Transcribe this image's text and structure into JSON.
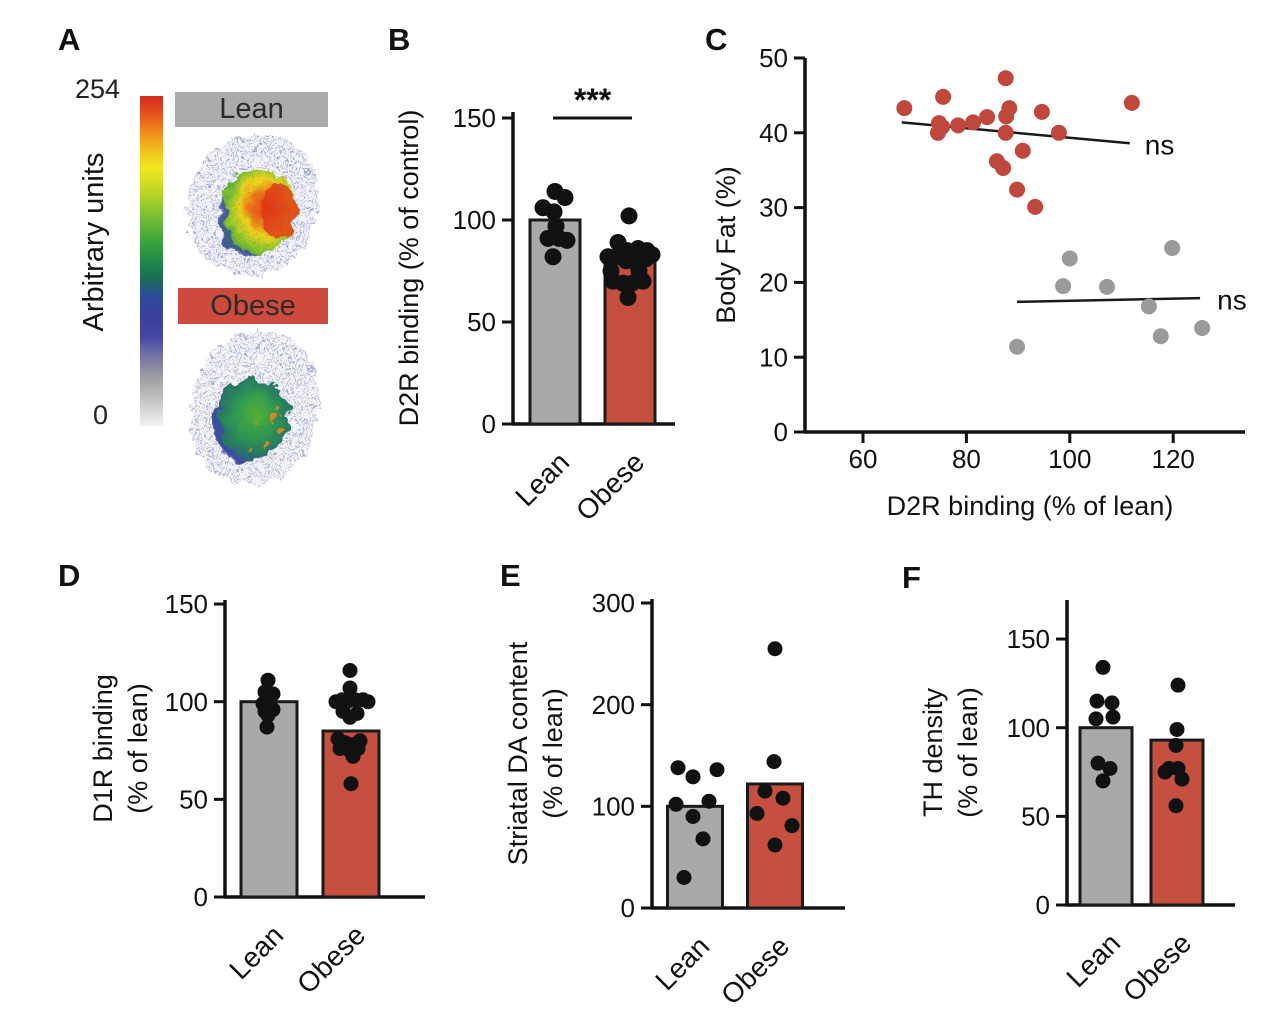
{
  "figure_labels": {
    "A": "A",
    "B": "B",
    "C": "C",
    "D": "D",
    "E": "E",
    "F": "F"
  },
  "panel_a": {
    "value_top": "254",
    "value_bottom": "0",
    "scale_label": "Arbitrary units",
    "images": [
      {
        "label": "Lean",
        "header_color": "#ABABAB"
      },
      {
        "label": "Obese",
        "header_color": "#CE4A3C"
      }
    ]
  },
  "colors": {
    "lean_bar": "#A9A9A9",
    "obese_bar": "#C5503F",
    "bar_border": "#1a1a1a",
    "dot": "#111111",
    "scatter_obese": "#C0473C",
    "scatter_lean": "#9A9A9A",
    "axis": "#111111"
  },
  "chart_data": [
    {
      "panel": "B",
      "type": "bar",
      "ylabel_lines": [
        "D2R binding (% of control)"
      ],
      "categories": [
        "Lean",
        "Obese"
      ],
      "bar_values": [
        100,
        80
      ],
      "yticks": [
        0,
        50,
        100,
        150
      ],
      "ylim": [
        0,
        153
      ],
      "significance": "***",
      "points": [
        [
          [
            0,
            114
          ],
          [
            10,
            111
          ],
          [
            -12,
            106
          ],
          [
            -1,
            104
          ],
          [
            1,
            97
          ],
          [
            -7,
            91
          ],
          [
            4,
            91
          ],
          [
            12,
            90
          ],
          [
            -2,
            82
          ]
        ],
        [
          [
            -1,
            102
          ],
          [
            -12,
            89
          ],
          [
            -3,
            85
          ],
          [
            8,
            86
          ],
          [
            17,
            85
          ],
          [
            -22,
            82
          ],
          [
            -14,
            82
          ],
          [
            -4,
            80
          ],
          [
            6,
            79
          ],
          [
            16,
            81
          ],
          [
            22,
            83
          ],
          [
            -19,
            75
          ],
          [
            9,
            75
          ],
          [
            -17,
            70
          ],
          [
            -7,
            69
          ],
          [
            2,
            69
          ],
          [
            13,
            70
          ],
          [
            -2,
            62
          ]
        ]
      ]
    },
    {
      "panel": "C",
      "type": "scatter",
      "xlabel": "D2R binding (% of lean)",
      "ylabel": "Body Fat (%)",
      "xticks": [
        60,
        80,
        100,
        120
      ],
      "yticks": [
        0,
        10,
        20,
        30,
        40,
        50
      ],
      "xlim": [
        49,
        134
      ],
      "ylim": [
        0,
        50
      ],
      "series": [
        {
          "name": "Obese",
          "color": "#C0473C",
          "points": [
            [
              68,
              43.3
            ],
            [
              75.5,
              44.8
            ],
            [
              87.6,
              47.3
            ],
            [
              74.7,
              41.3
            ],
            [
              75.3,
              40.8
            ],
            [
              74.5,
              40.0
            ],
            [
              78.4,
              41.0
            ],
            [
              81.3,
              41.4
            ],
            [
              84,
              42.1
            ],
            [
              88.3,
              43.3
            ],
            [
              87.7,
              42.2
            ],
            [
              94.6,
              42.8
            ],
            [
              87.6,
              40.0
            ],
            [
              97.9,
              40.0
            ],
            [
              90.9,
              37.6
            ],
            [
              85.9,
              36.2
            ],
            [
              87.1,
              35.3
            ],
            [
              89.8,
              32.4
            ],
            [
              93.3,
              30.1
            ],
            [
              112,
              44.0
            ]
          ],
          "trend": [
            [
              67.5,
              41.4
            ],
            [
              111.6,
              38.6
            ]
          ],
          "annotation": "ns",
          "annotation_xy": [
            114.5,
            38.4
          ]
        },
        {
          "name": "Lean",
          "color": "#9A9A9A",
          "points": [
            [
              100,
              23.2
            ],
            [
              98.7,
              19.5
            ],
            [
              107.2,
              19.4
            ],
            [
              89.8,
              11.4
            ],
            [
              115.3,
              16.8
            ],
            [
              117.6,
              12.8
            ],
            [
              119.8,
              24.6
            ],
            [
              125.6,
              13.9
            ]
          ],
          "trend": [
            [
              89.8,
              17.4
            ],
            [
              125.2,
              17.9
            ]
          ],
          "annotation": "ns",
          "annotation_xy": [
            128.5,
            17.7
          ]
        }
      ]
    },
    {
      "panel": "D",
      "type": "bar",
      "ylabel_lines": [
        "D1R binding",
        "(% of lean)"
      ],
      "categories": [
        "Lean",
        "Obese"
      ],
      "bar_values": [
        100,
        85
      ],
      "yticks": [
        0,
        50,
        100,
        150
      ],
      "ylim": [
        0,
        152
      ],
      "significance": null,
      "points": [
        [
          [
            -1,
            111
          ],
          [
            -4,
            105
          ],
          [
            4,
            104
          ],
          [
            -6,
            99
          ],
          [
            0,
            98
          ],
          [
            -4,
            95
          ],
          [
            4,
            96
          ],
          [
            -1,
            93
          ],
          [
            -2,
            87
          ]
        ],
        [
          [
            -1,
            116
          ],
          [
            -1,
            107
          ],
          [
            -15,
            100
          ],
          [
            -9,
            101
          ],
          [
            -4,
            100
          ],
          [
            4,
            101
          ],
          [
            12,
            101
          ],
          [
            17,
            100
          ],
          [
            -8,
            95
          ],
          [
            6,
            94
          ],
          [
            -1,
            92
          ],
          [
            -13,
            81
          ],
          [
            -6,
            79
          ],
          [
            2,
            78
          ],
          [
            9,
            80
          ],
          [
            -11,
            76
          ],
          [
            -1,
            75
          ],
          [
            7,
            76
          ],
          [
            2,
            72
          ],
          [
            0,
            58
          ]
        ]
      ]
    },
    {
      "panel": "E",
      "type": "bar",
      "ylabel_lines": [
        "Striatal DA content",
        "(% of lean)"
      ],
      "categories": [
        "Lean",
        "Obese"
      ],
      "bar_values": [
        100,
        122
      ],
      "yticks": [
        0,
        100,
        200,
        300
      ],
      "ylim": [
        0,
        305
      ],
      "significance": null,
      "points": [
        [
          [
            -17,
            138
          ],
          [
            22,
            136
          ],
          [
            -2,
            129
          ],
          [
            -19,
            102
          ],
          [
            14,
            105
          ],
          [
            -2,
            90
          ],
          [
            8,
            68
          ],
          [
            -11,
            30
          ]
        ],
        [
          [
            0,
            255
          ],
          [
            -1,
            144
          ],
          [
            -10,
            115
          ],
          [
            8,
            108
          ],
          [
            -18,
            93
          ],
          [
            17,
            81
          ],
          [
            0,
            62
          ]
        ]
      ]
    },
    {
      "panel": "F",
      "type": "bar",
      "ylabel_lines": [
        "TH density",
        "(% of lean)"
      ],
      "categories": [
        "Lean",
        "Obese"
      ],
      "bar_values": [
        100,
        93
      ],
      "yticks": [
        0,
        50,
        100,
        150
      ],
      "ylim": [
        0,
        172
      ],
      "significance": null,
      "points": [
        [
          [
            -3,
            134
          ],
          [
            -9,
            115
          ],
          [
            6,
            114
          ],
          [
            -10,
            105
          ],
          [
            7,
            106
          ],
          [
            -8,
            80
          ],
          [
            4,
            77
          ],
          [
            -3,
            70
          ]
        ],
        [
          [
            1,
            124
          ],
          [
            0,
            99
          ],
          [
            -1,
            90
          ],
          [
            -8,
            77
          ],
          [
            1,
            77
          ],
          [
            -12,
            75
          ],
          [
            5,
            71
          ],
          [
            -1,
            56
          ]
        ]
      ]
    }
  ]
}
